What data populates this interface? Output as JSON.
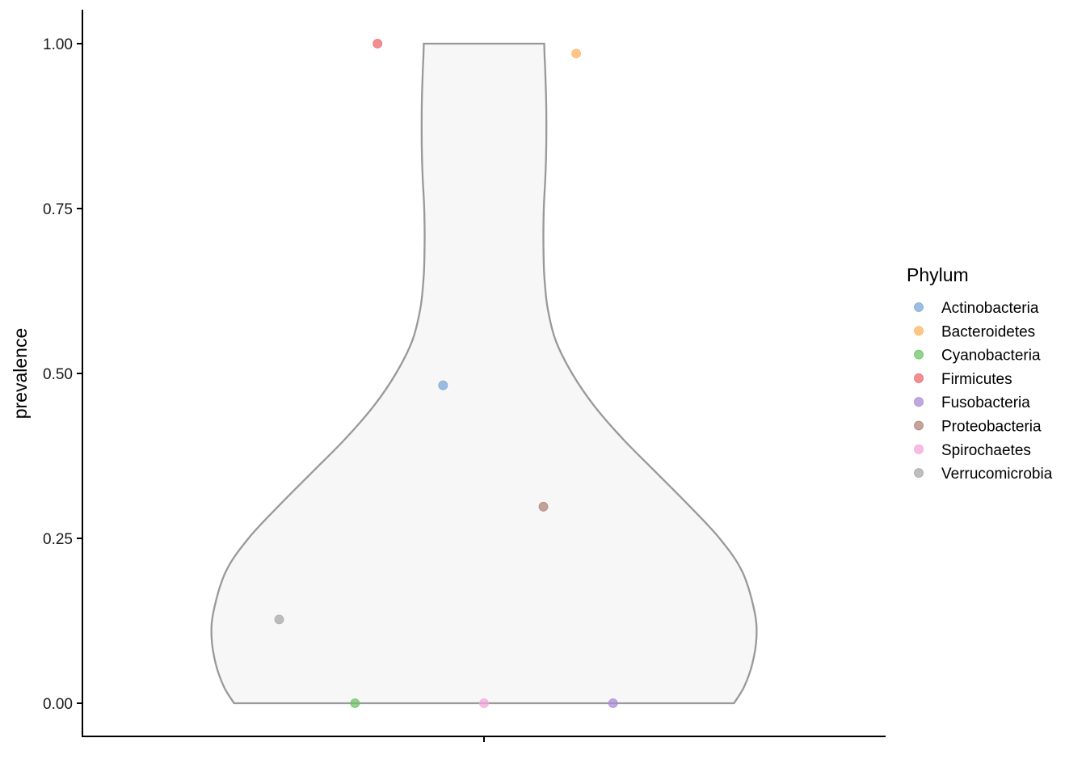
{
  "chart_data": {
    "type": "violin",
    "xlabel": "",
    "ylabel": "prevalence",
    "ylim": [
      -0.05,
      1.05
    ],
    "y_ticks": [
      "0.00",
      "0.25",
      "0.50",
      "0.75",
      "1.00"
    ],
    "y_tick_values": [
      0,
      0.25,
      0.5,
      0.75,
      1.0
    ],
    "violin": {
      "fill": "#f7f7f7",
      "stroke": "#999999",
      "profile": [
        {
          "y": 0.0,
          "half_width": 0.61
        },
        {
          "y": 0.025,
          "half_width": 0.635
        },
        {
          "y": 0.06,
          "half_width": 0.655
        },
        {
          "y": 0.1,
          "half_width": 0.665
        },
        {
          "y": 0.14,
          "half_width": 0.66
        },
        {
          "y": 0.2,
          "half_width": 0.63
        },
        {
          "y": 0.25,
          "half_width": 0.575
        },
        {
          "y": 0.3,
          "half_width": 0.5
        },
        {
          "y": 0.35,
          "half_width": 0.42
        },
        {
          "y": 0.4,
          "half_width": 0.34
        },
        {
          "y": 0.45,
          "half_width": 0.27
        },
        {
          "y": 0.5,
          "half_width": 0.215
        },
        {
          "y": 0.55,
          "half_width": 0.175
        },
        {
          "y": 0.6,
          "half_width": 0.155
        },
        {
          "y": 0.65,
          "half_width": 0.147
        },
        {
          "y": 0.7,
          "half_width": 0.145
        },
        {
          "y": 0.75,
          "half_width": 0.146
        },
        {
          "y": 0.8,
          "half_width": 0.15
        },
        {
          "y": 0.85,
          "half_width": 0.152
        },
        {
          "y": 0.9,
          "half_width": 0.152
        },
        {
          "y": 0.95,
          "half_width": 0.15
        },
        {
          "y": 0.98,
          "half_width": 0.148
        },
        {
          "y": 1.0,
          "half_width": 0.147
        }
      ]
    },
    "points": [
      {
        "phylum": "Actinobacteria",
        "x": -0.1,
        "y": 0.482
      },
      {
        "phylum": "Bacteroidetes",
        "x": 0.225,
        "y": 0.985
      },
      {
        "phylum": "Cyanobacteria",
        "x": -0.315,
        "y": 0.0
      },
      {
        "phylum": "Firmicutes",
        "x": -0.26,
        "y": 1.0
      },
      {
        "phylum": "Fusobacteria",
        "x": 0.315,
        "y": 0.0
      },
      {
        "phylum": "Proteobacteria",
        "x": 0.145,
        "y": 0.298
      },
      {
        "phylum": "Spirochaetes",
        "x": 0.0,
        "y": 0.0
      },
      {
        "phylum": "Verrucomicrobia",
        "x": -0.5,
        "y": 0.127
      }
    ],
    "legend": {
      "title": "Phylum",
      "placement": "right",
      "entries": [
        {
          "label": "Actinobacteria",
          "color": "#7da7d8"
        },
        {
          "label": "Bacteroidetes",
          "color": "#fdb461"
        },
        {
          "label": "Cyanobacteria",
          "color": "#6fc46a"
        },
        {
          "label": "Firmicutes",
          "color": "#ec6a6b"
        },
        {
          "label": "Fusobacteria",
          "color": "#a98bd6"
        },
        {
          "label": "Proteobacteria",
          "color": "#b0857a"
        },
        {
          "label": "Spirochaetes",
          "color": "#f3a6d9"
        },
        {
          "label": "Verrucomicrobia",
          "color": "#a8a8a8"
        }
      ]
    },
    "grid": false,
    "point_alpha": 0.75
  }
}
